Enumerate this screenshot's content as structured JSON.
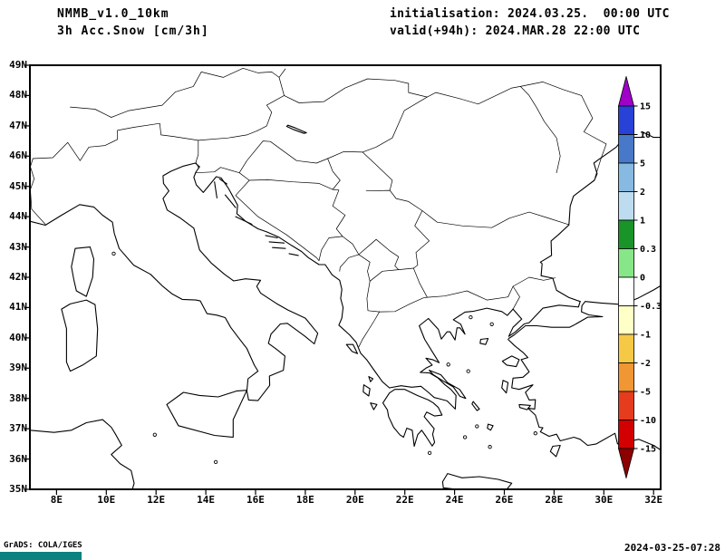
{
  "header": {
    "model": "NMMB_v1.0_10km",
    "product": "3h Acc.Snow [cm/3h]",
    "initialisation": "initialisation: 2024.03.25.  00:00 UTC",
    "valid": "valid(+94h): 2024.MAR.28 22:00 UTC"
  },
  "axes": {
    "lat_labels": [
      "49N",
      "48N",
      "47N",
      "46N",
      "45N",
      "44N",
      "43N",
      "42N",
      "41N",
      "40N",
      "39N",
      "38N",
      "37N",
      "36N",
      "35N"
    ],
    "lon_labels": [
      "8E",
      "10E",
      "12E",
      "14E",
      "16E",
      "18E",
      "20E",
      "22E",
      "24E",
      "26E",
      "28E",
      "30E",
      "32E"
    ]
  },
  "colorbar": {
    "tick_labels": [
      "15",
      "10",
      "5",
      "2",
      "1",
      "0.3",
      "0",
      "-0.3",
      "-1",
      "-2",
      "-5",
      "-10",
      "-15"
    ],
    "colors": [
      "#a000c8",
      "#2841d7",
      "#4878c8",
      "#87b9e1",
      "#bedcf0",
      "#189428",
      "#87e687",
      "#ffffff",
      "#ffffc8",
      "#f5c846",
      "#f09632",
      "#e63c1e",
      "#d20000",
      "#8c0000"
    ]
  },
  "footer": {
    "credit": "GrADS: COLA/IGES",
    "timestamp": "2024-03-25-07:28",
    "logo_color": "#0d8080"
  }
}
